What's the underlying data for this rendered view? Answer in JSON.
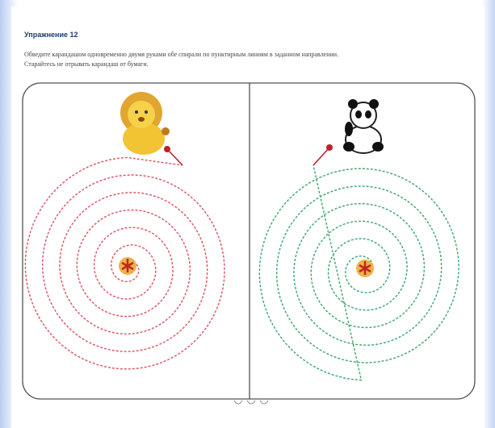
{
  "header": {
    "title": "Упражнение 12",
    "instruction": [
      "Обведите карандашом одновременно двумя руками обе спирали по пунктирным линиям в заданном направлении.",
      "Старайтесь не отрывать карандаш от бумаги."
    ]
  }
}
